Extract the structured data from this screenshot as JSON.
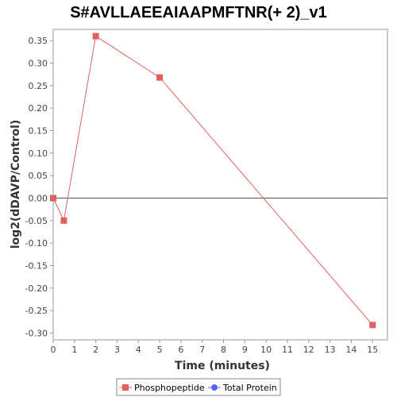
{
  "chart_data": {
    "type": "line",
    "title": "S#AVLLAEEAIAAPMFTNR(+ 2)_v1",
    "xlabel": "Time (minutes)",
    "ylabel": "log2(dDAVP/Control)",
    "xlim": [
      0,
      15.7
    ],
    "ylim": [
      -0.315,
      0.375
    ],
    "xticks": [
      0,
      1,
      2,
      3,
      4,
      5,
      6,
      7,
      8,
      9,
      10,
      11,
      12,
      13,
      14,
      15
    ],
    "yticks": [
      0.35,
      0.3,
      0.25,
      0.2,
      0.15,
      0.1,
      0.05,
      0.0,
      -0.05,
      -0.1,
      -0.15,
      -0.2,
      -0.25,
      -0.3
    ],
    "ytick_labels": [
      "0.35",
      "0.30",
      "0.25",
      "0.20",
      "0.15",
      "0.10",
      "0.05",
      "0.00",
      "-0.05",
      "-0.10",
      "-0.15",
      "-0.20",
      "-0.25",
      "-0.30"
    ],
    "zero_line": true,
    "grid": false,
    "series": [
      {
        "name": "Phosphopeptide",
        "color": "#e06060",
        "marker": "square",
        "points": [
          {
            "x": 0,
            "y": 0.0
          },
          {
            "x": 0.5,
            "y": -0.05
          },
          {
            "x": 2,
            "y": 0.36
          },
          {
            "x": 5,
            "y": 0.268
          },
          {
            "x": 15,
            "y": -0.282
          }
        ]
      },
      {
        "name": "Total Protein",
        "color": "#5566ee",
        "marker": "circle",
        "points": []
      }
    ],
    "legend": {
      "position": "bottom-center",
      "items": [
        {
          "label": "Phosphopeptide",
          "color": "#e06060",
          "marker": "square"
        },
        {
          "label": "Total Protein",
          "color": "#5566ee",
          "marker": "circle"
        }
      ]
    }
  }
}
